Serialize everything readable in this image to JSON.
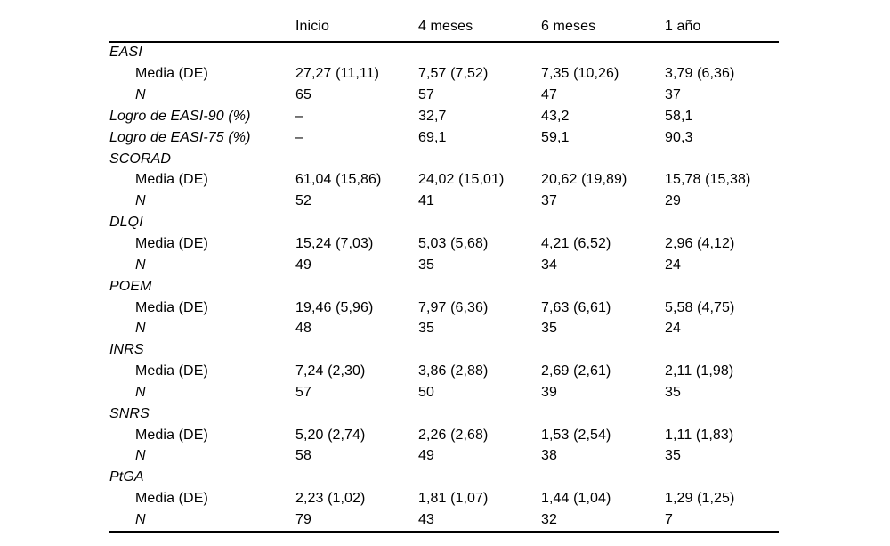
{
  "styles": {
    "background": "#ffffff",
    "text": "#000000",
    "rule": "#000000"
  },
  "table": {
    "columns": [
      "",
      "Inicio",
      "4 meses",
      "6 meses",
      "1 año"
    ],
    "rows": [
      {
        "label": "EASI",
        "style": "section",
        "values": [
          "",
          "",
          "",
          ""
        ]
      },
      {
        "label": "Media (DE)",
        "style": "sub",
        "values": [
          "27,27 (11,11)",
          "7,57 (7,52)",
          "7,35 (10,26)",
          "3,79 (6,36)"
        ]
      },
      {
        "label": "N",
        "style": "sub-italic",
        "values": [
          "65",
          "57",
          "47",
          "37"
        ]
      },
      {
        "label": "Logro de EASI-90 (%)",
        "style": "section",
        "values": [
          "–",
          "32,7",
          "43,2",
          "58,1"
        ]
      },
      {
        "label": "Logro de EASI-75 (%)",
        "style": "section",
        "values": [
          "–",
          "69,1",
          "59,1",
          "90,3"
        ]
      },
      {
        "label": "SCORAD",
        "style": "section",
        "values": [
          "",
          "",
          "",
          ""
        ]
      },
      {
        "label": "Media (DE)",
        "style": "sub",
        "values": [
          "61,04 (15,86)",
          "24,02 (15,01)",
          "20,62 (19,89)",
          "15,78 (15,38)"
        ]
      },
      {
        "label": "N",
        "style": "sub-italic",
        "values": [
          "52",
          "41",
          "37",
          "29"
        ]
      },
      {
        "label": "DLQI",
        "style": "section",
        "values": [
          "",
          "",
          "",
          ""
        ]
      },
      {
        "label": "Media (DE)",
        "style": "sub",
        "values": [
          "15,24 (7,03)",
          "5,03 (5,68)",
          "4,21 (6,52)",
          "2,96 (4,12)"
        ]
      },
      {
        "label": "N",
        "style": "sub-italic",
        "values": [
          "49",
          "35",
          "34",
          "24"
        ]
      },
      {
        "label": "POEM",
        "style": "section",
        "values": [
          "",
          "",
          "",
          ""
        ]
      },
      {
        "label": "Media (DE)",
        "style": "sub",
        "values": [
          "19,46 (5,96)",
          "7,97 (6,36)",
          "7,63 (6,61)",
          "5,58 (4,75)"
        ]
      },
      {
        "label": "N",
        "style": "sub-italic",
        "values": [
          "48",
          "35",
          "35",
          "24"
        ]
      },
      {
        "label": "INRS",
        "style": "section",
        "values": [
          "",
          "",
          "",
          ""
        ]
      },
      {
        "label": "Media (DE)",
        "style": "sub",
        "values": [
          "7,24 (2,30)",
          "3,86 (2,88)",
          "2,69 (2,61)",
          "2,11 (1,98)"
        ]
      },
      {
        "label": "N",
        "style": "sub-italic",
        "values": [
          "57",
          "50",
          "39",
          "35"
        ]
      },
      {
        "label": "SNRS",
        "style": "section",
        "values": [
          "",
          "",
          "",
          ""
        ]
      },
      {
        "label": "Media (DE)",
        "style": "sub",
        "values": [
          "5,20 (2,74)",
          "2,26 (2,68)",
          "1,53 (2,54)",
          "1,11 (1,83)"
        ]
      },
      {
        "label": "N",
        "style": "sub-italic",
        "values": [
          "58",
          "49",
          "38",
          "35"
        ]
      },
      {
        "label": "PtGA",
        "style": "section",
        "values": [
          "",
          "",
          "",
          ""
        ]
      },
      {
        "label": "Media (DE)",
        "style": "sub",
        "values": [
          "2,23 (1,02)",
          "1,81 (1,07)",
          "1,44 (1,04)",
          "1,29 (1,25)"
        ]
      },
      {
        "label": "N",
        "style": "sub-italic",
        "values": [
          "79",
          "43",
          "32",
          "7"
        ]
      }
    ]
  }
}
